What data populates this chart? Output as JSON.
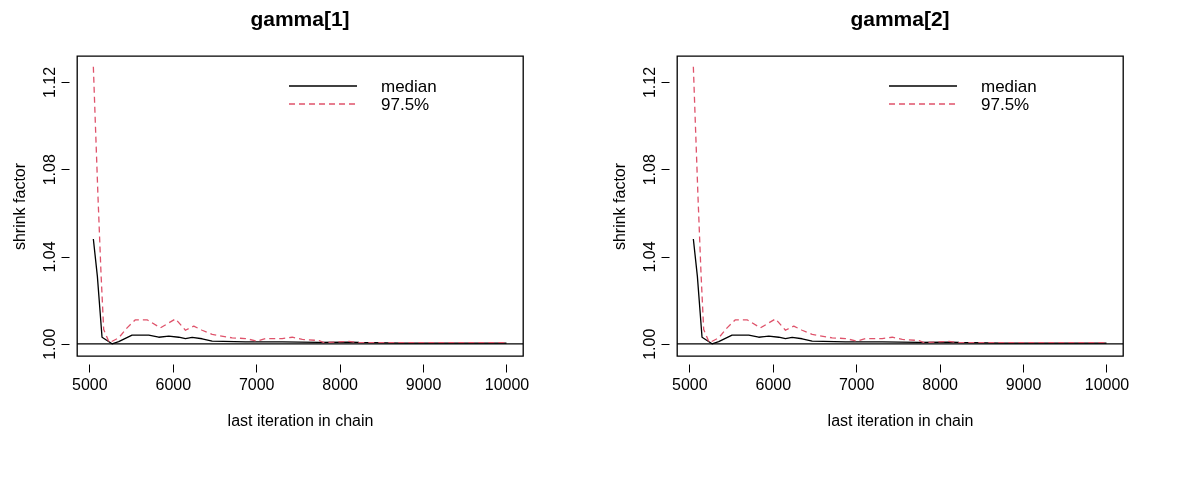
{
  "chart_data": [
    {
      "type": "line",
      "title": "gamma[1]",
      "xlabel": "last iteration in chain",
      "ylabel": "shrink factor",
      "legend": "top right",
      "grid": false,
      "xlim": [
        4852,
        10198
      ],
      "ylim": [
        0.9944,
        1.1319
      ],
      "xticks": [
        5000,
        6000,
        7000,
        8000,
        9000,
        10000
      ],
      "yticks": [
        {
          "value": 1.0,
          "label": "1.00"
        },
        {
          "value": 1.04,
          "label": "1.04"
        },
        {
          "value": 1.08,
          "label": "1.08"
        },
        {
          "value": 1.12,
          "label": "1.12"
        }
      ],
      "ref_lines": [
        {
          "axis": "y",
          "value": 1.0,
          "color": "#000000"
        }
      ],
      "series": [
        {
          "name": "median",
          "color": "#000000",
          "line_style": "solid",
          "x": [
            5048,
            5096,
            5152,
            5272,
            5352,
            5512,
            5612,
            5712,
            5832,
            5952,
            6072,
            6152,
            6232,
            6352,
            6472,
            6872,
            7312,
            7752,
            8112,
            8232,
            8752,
            10000
          ],
          "values": [
            1.048,
            1.031,
            1.003,
            1.0,
            1.001,
            1.004,
            1.004,
            1.004,
            1.003,
            1.0035,
            1.003,
            1.0024,
            1.0029,
            1.0023,
            1.0012,
            1.0009,
            1.0009,
            1.0006,
            1.0008,
            1.0006,
            1.0003,
            1.0003
          ]
        },
        {
          "name": "97.5%",
          "color": "#df536b",
          "line_style": "dashed",
          "x": [
            5048,
            5072,
            5104,
            5140,
            5172,
            5240,
            5352,
            5452,
            5552,
            5692,
            5852,
            6032,
            6152,
            6252,
            6352,
            6472,
            6712,
            6872,
            7012,
            7112,
            7312,
            7432,
            7552,
            7752,
            7812,
            8112,
            8232,
            10000
          ],
          "values": [
            1.127,
            1.101,
            1.067,
            1.032,
            1.0065,
            1.0005,
            1.0027,
            1.0073,
            1.011,
            1.011,
            1.0073,
            1.0114,
            1.0062,
            1.0081,
            1.0062,
            1.0043,
            1.0027,
            1.0024,
            1.0012,
            1.0024,
            1.0024,
            1.003,
            1.002,
            1.0015,
            1.0005,
            1.0011,
            1.0005,
            1.0005
          ]
        }
      ]
    },
    {
      "type": "line",
      "title": "gamma[2]",
      "xlabel": "last iteration in chain",
      "ylabel": "shrink factor",
      "legend": "top right",
      "grid": false,
      "xlim": [
        4852,
        10198
      ],
      "ylim": [
        0.9944,
        1.1319
      ],
      "xticks": [
        5000,
        6000,
        7000,
        8000,
        9000,
        10000
      ],
      "yticks": [
        {
          "value": 1.0,
          "label": "1.00"
        },
        {
          "value": 1.04,
          "label": "1.04"
        },
        {
          "value": 1.08,
          "label": "1.08"
        },
        {
          "value": 1.12,
          "label": "1.12"
        }
      ],
      "ref_lines": [
        {
          "axis": "y",
          "value": 1.0,
          "color": "#000000"
        }
      ],
      "series": [
        {
          "name": "median",
          "color": "#000000",
          "line_style": "solid",
          "x": [
            5048,
            5096,
            5152,
            5272,
            5352,
            5512,
            5612,
            5712,
            5832,
            5952,
            6072,
            6152,
            6232,
            6352,
            6472,
            6872,
            7312,
            7752,
            8112,
            8232,
            8752,
            10000
          ],
          "values": [
            1.048,
            1.031,
            1.003,
            1.0,
            1.001,
            1.004,
            1.004,
            1.004,
            1.003,
            1.0035,
            1.003,
            1.0024,
            1.0029,
            1.0023,
            1.0012,
            1.0009,
            1.0009,
            1.0006,
            1.0008,
            1.0006,
            1.0003,
            1.0003
          ]
        },
        {
          "name": "97.5%",
          "color": "#df536b",
          "line_style": "dashed",
          "x": [
            5048,
            5072,
            5104,
            5140,
            5172,
            5240,
            5352,
            5452,
            5552,
            5692,
            5852,
            6032,
            6152,
            6252,
            6352,
            6472,
            6712,
            6872,
            7012,
            7112,
            7312,
            7432,
            7552,
            7752,
            7812,
            8112,
            8232,
            10000
          ],
          "values": [
            1.127,
            1.101,
            1.067,
            1.032,
            1.0065,
            1.0005,
            1.0027,
            1.0073,
            1.011,
            1.011,
            1.0073,
            1.0114,
            1.0062,
            1.0081,
            1.0062,
            1.0043,
            1.0027,
            1.0024,
            1.0012,
            1.0024,
            1.0024,
            1.003,
            1.002,
            1.0015,
            1.0005,
            1.0011,
            1.0005,
            1.0005
          ]
        }
      ]
    }
  ]
}
